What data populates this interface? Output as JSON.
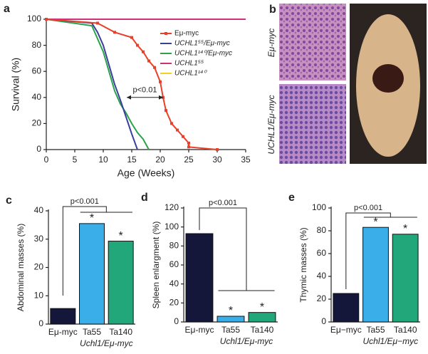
{
  "chart_data": [
    {
      "type": "line",
      "panel": "a",
      "x_label": "Age (Weeks)",
      "y_label": "Survival (%)",
      "annotation": "p<0.01",
      "xlim": [
        0,
        35
      ],
      "xticks": [
        0,
        5,
        10,
        15,
        20,
        25,
        30,
        35
      ],
      "ylim": [
        0,
        100
      ],
      "yticks": [
        0,
        20,
        40,
        60,
        80,
        100
      ],
      "legend": "upper right",
      "series": [
        {
          "name": "Eμ-myc",
          "color": "#e8402a",
          "markers": true,
          "x": [
            0,
            9,
            12,
            15,
            16,
            17,
            18,
            19,
            20,
            20.5,
            21,
            22,
            23,
            24,
            25,
            25,
            30
          ],
          "values": [
            100,
            97,
            90,
            86,
            80,
            75,
            68,
            63,
            52,
            40,
            30,
            20,
            15,
            10,
            5,
            2,
            0
          ]
        },
        {
          "name": "UCHL1⁵⁵/Eμ-myc",
          "color": "#3a3f9c",
          "x": [
            0,
            8,
            9,
            10,
            11,
            12,
            13,
            14,
            15,
            16
          ],
          "values": [
            100,
            97,
            90,
            80,
            65,
            50,
            38,
            25,
            12,
            0
          ]
        },
        {
          "name": "UCHL1¹⁴⁰/Eμ-myc",
          "color": "#2aa34a",
          "x": [
            0,
            8,
            9,
            10,
            11,
            12,
            13,
            14,
            15,
            16,
            17,
            18
          ],
          "values": [
            100,
            95,
            85,
            75,
            60,
            45,
            35,
            28,
            20,
            13,
            8,
            0
          ]
        },
        {
          "name": "UCHL1⁵⁵",
          "color": "#d0307a",
          "x": [
            0,
            35
          ],
          "values": [
            100,
            100
          ]
        },
        {
          "name": "UCHL1¹⁴⁰",
          "color": "#f2d21c",
          "x": [
            0,
            35
          ],
          "values": [
            100,
            100
          ]
        }
      ]
    },
    {
      "type": "bar",
      "panel": "c",
      "y_label": "Abdominal masses (%)",
      "categories": [
        "Eμ-myc",
        "Ta55",
        "Ta140"
      ],
      "group_label": "Uchl1/Eμ-myc",
      "values": [
        5.5,
        35.5,
        29.3
      ],
      "colors": [
        "#14163a",
        "#39aee8",
        "#22a77a"
      ],
      "ylim": [
        0,
        40
      ],
      "yticks": [
        0,
        10,
        20,
        30,
        40
      ],
      "significance": "p<0.001",
      "stars": [
        "*",
        "*"
      ]
    },
    {
      "type": "bar",
      "panel": "d",
      "y_label": "Spleen enlargment (%)",
      "categories": [
        "Eμ-myc",
        "Ta55",
        "Ta140"
      ],
      "group_label": "Uchl1/Eμ-myc",
      "values": [
        93,
        6,
        10
      ],
      "colors": [
        "#14163a",
        "#39aee8",
        "#22a77a"
      ],
      "ylim": [
        0,
        120
      ],
      "yticks": [
        0,
        20,
        40,
        60,
        80,
        100,
        120
      ],
      "significance": "p<0.001",
      "stars": [
        "*",
        "*"
      ]
    },
    {
      "type": "bar",
      "panel": "e",
      "y_label": "Thymic masses (%)",
      "categories": [
        "Eμ−myc",
        "Ta55",
        "Ta140"
      ],
      "group_label": "Uchl1/Eμ−myc",
      "values": [
        25,
        83,
        77
      ],
      "colors": [
        "#14163a",
        "#39aee8",
        "#22a77a"
      ],
      "ylim": [
        0,
        100
      ],
      "yticks": [
        0,
        20,
        40,
        60,
        80,
        100
      ],
      "significance": "p<0.001",
      "stars": [
        "*",
        "*"
      ]
    }
  ],
  "panel_b": {
    "panel": "b",
    "labels": [
      "Eμ-myc",
      "UCHL1/Eμ-myc"
    ]
  }
}
